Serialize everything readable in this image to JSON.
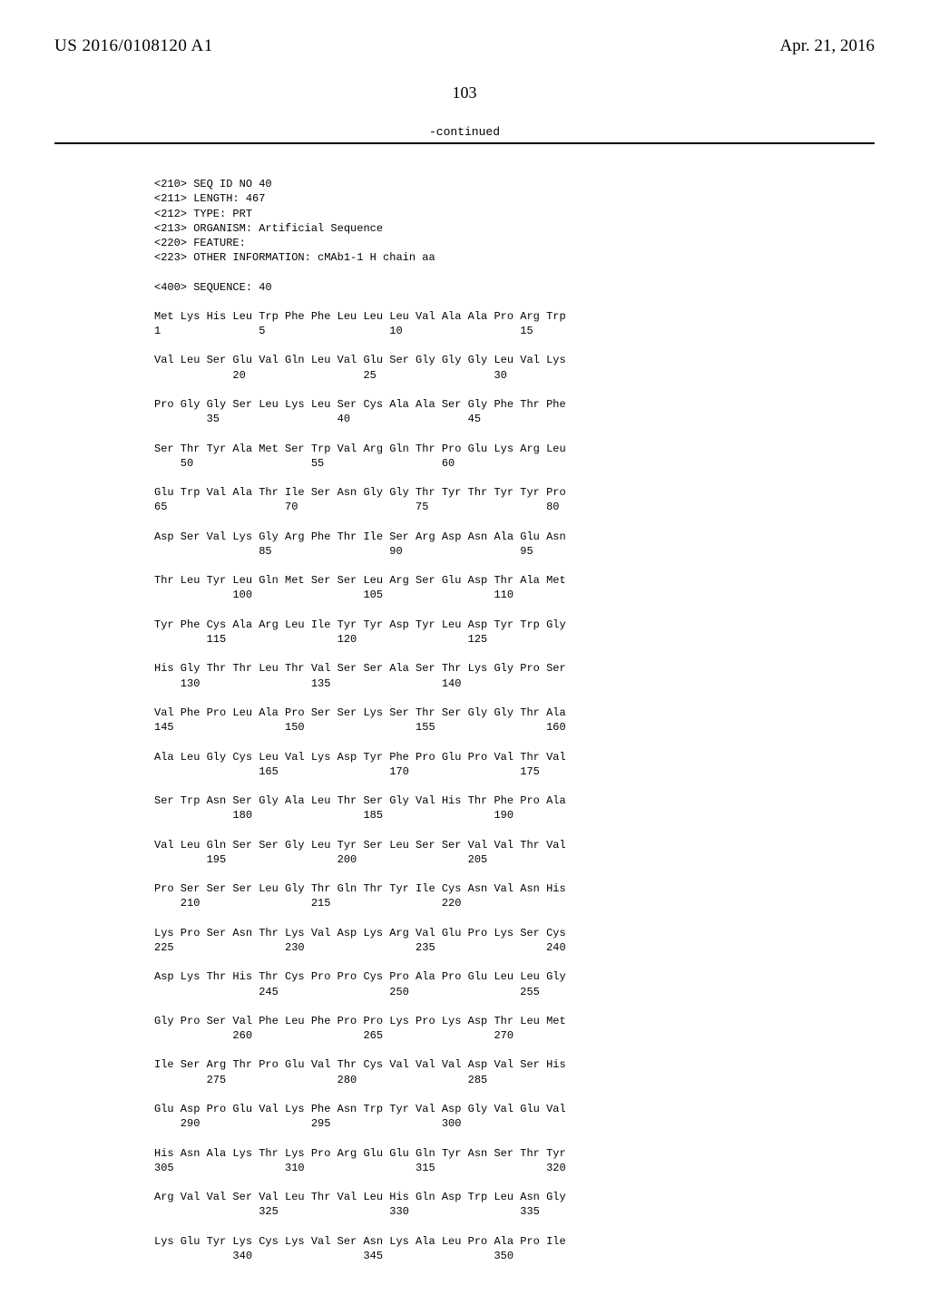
{
  "header": {
    "pub_number": "US 2016/0108120 A1",
    "pub_date": "Apr. 21, 2016"
  },
  "page_number": "103",
  "continued_label": "-continued",
  "seq_meta": {
    "l210": "<210> SEQ ID NO 40",
    "l211": "<211> LENGTH: 467",
    "l212": "<212> TYPE: PRT",
    "l213": "<213> ORGANISM: Artificial Sequence",
    "l220": "<220> FEATURE:",
    "l223": "<223> OTHER INFORMATION: cMAb1-1 H chain aa",
    "l400": "<400> SEQUENCE: 40"
  },
  "rows": [
    {
      "aa": "Met Lys His Leu Trp Phe Phe Leu Leu Leu Val Ala Ala Pro Arg Trp",
      "nm": "1               5                   10                  15"
    },
    {
      "aa": "Val Leu Ser Glu Val Gln Leu Val Glu Ser Gly Gly Gly Leu Val Lys",
      "nm": "            20                  25                  30"
    },
    {
      "aa": "Pro Gly Gly Ser Leu Lys Leu Ser Cys Ala Ala Ser Gly Phe Thr Phe",
      "nm": "        35                  40                  45"
    },
    {
      "aa": "Ser Thr Tyr Ala Met Ser Trp Val Arg Gln Thr Pro Glu Lys Arg Leu",
      "nm": "    50                  55                  60"
    },
    {
      "aa": "Glu Trp Val Ala Thr Ile Ser Asn Gly Gly Thr Tyr Thr Tyr Tyr Pro",
      "nm": "65                  70                  75                  80"
    },
    {
      "aa": "Asp Ser Val Lys Gly Arg Phe Thr Ile Ser Arg Asp Asn Ala Glu Asn",
      "nm": "                85                  90                  95"
    },
    {
      "aa": "Thr Leu Tyr Leu Gln Met Ser Ser Leu Arg Ser Glu Asp Thr Ala Met",
      "nm": "            100                 105                 110"
    },
    {
      "aa": "Tyr Phe Cys Ala Arg Leu Ile Tyr Tyr Asp Tyr Leu Asp Tyr Trp Gly",
      "nm": "        115                 120                 125"
    },
    {
      "aa": "His Gly Thr Thr Leu Thr Val Ser Ser Ala Ser Thr Lys Gly Pro Ser",
      "nm": "    130                 135                 140"
    },
    {
      "aa": "Val Phe Pro Leu Ala Pro Ser Ser Lys Ser Thr Ser Gly Gly Thr Ala",
      "nm": "145                 150                 155                 160"
    },
    {
      "aa": "Ala Leu Gly Cys Leu Val Lys Asp Tyr Phe Pro Glu Pro Val Thr Val",
      "nm": "                165                 170                 175"
    },
    {
      "aa": "Ser Trp Asn Ser Gly Ala Leu Thr Ser Gly Val His Thr Phe Pro Ala",
      "nm": "            180                 185                 190"
    },
    {
      "aa": "Val Leu Gln Ser Ser Gly Leu Tyr Ser Leu Ser Ser Val Val Thr Val",
      "nm": "        195                 200                 205"
    },
    {
      "aa": "Pro Ser Ser Ser Leu Gly Thr Gln Thr Tyr Ile Cys Asn Val Asn His",
      "nm": "    210                 215                 220"
    },
    {
      "aa": "Lys Pro Ser Asn Thr Lys Val Asp Lys Arg Val Glu Pro Lys Ser Cys",
      "nm": "225                 230                 235                 240"
    },
    {
      "aa": "Asp Lys Thr His Thr Cys Pro Pro Cys Pro Ala Pro Glu Leu Leu Gly",
      "nm": "                245                 250                 255"
    },
    {
      "aa": "Gly Pro Ser Val Phe Leu Phe Pro Pro Lys Pro Lys Asp Thr Leu Met",
      "nm": "            260                 265                 270"
    },
    {
      "aa": "Ile Ser Arg Thr Pro Glu Val Thr Cys Val Val Val Asp Val Ser His",
      "nm": "        275                 280                 285"
    },
    {
      "aa": "Glu Asp Pro Glu Val Lys Phe Asn Trp Tyr Val Asp Gly Val Glu Val",
      "nm": "    290                 295                 300"
    },
    {
      "aa": "His Asn Ala Lys Thr Lys Pro Arg Glu Glu Gln Tyr Asn Ser Thr Tyr",
      "nm": "305                 310                 315                 320"
    },
    {
      "aa": "Arg Val Val Ser Val Leu Thr Val Leu His Gln Asp Trp Leu Asn Gly",
      "nm": "                325                 330                 335"
    },
    {
      "aa": "Lys Glu Tyr Lys Cys Lys Val Ser Asn Lys Ala Leu Pro Ala Pro Ile",
      "nm": "            340                 345                 350"
    }
  ]
}
